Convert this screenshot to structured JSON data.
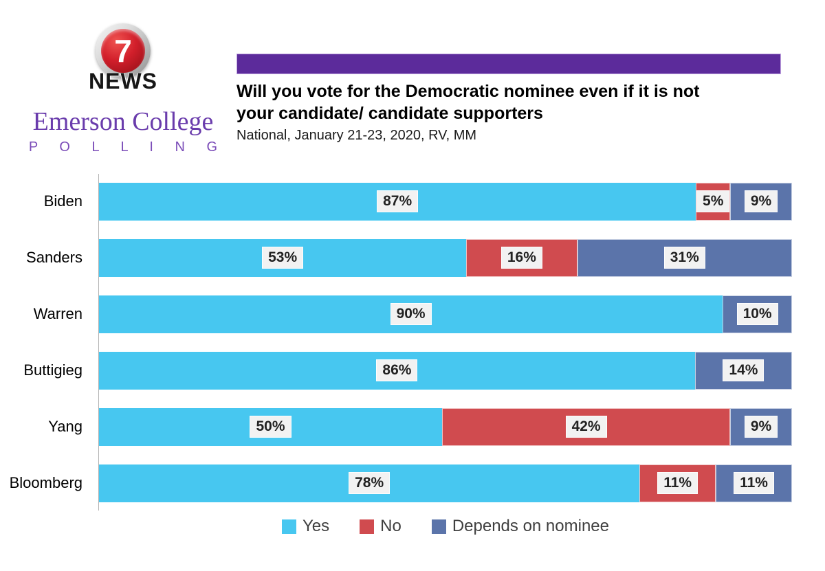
{
  "branding": {
    "logo_number": "7",
    "logo_text": "NEWS",
    "org_name": "Emerson College",
    "org_sub": "P O L L I N G",
    "org_color": "#6A3CAC"
  },
  "header": {
    "accent_bar_color": "#5C2B9B",
    "title_lines": [
      "Will you vote for the Democratic nominee even if it is not",
      "your candidate/ candidate supporters"
    ],
    "subtitle": "National, January 21-23, 2020, RV, MM"
  },
  "chart_data": {
    "type": "bar",
    "orientation": "horizontal",
    "stacked": true,
    "normalized_rows": true,
    "categories": [
      "Biden",
      "Sanders",
      "Warren",
      "Buttigieg",
      "Yang",
      "Bloomberg"
    ],
    "series": [
      {
        "name": "Yes",
        "color": "#47C7F0",
        "values": [
          87,
          53,
          90,
          86,
          50,
          78
        ]
      },
      {
        "name": "No",
        "color": "#D04B4F",
        "values": [
          5,
          16,
          0,
          0,
          42,
          11
        ]
      },
      {
        "name": "Depends on nominee",
        "color": "#5B74AA",
        "values": [
          9,
          31,
          10,
          14,
          9,
          11
        ]
      }
    ],
    "value_suffix": "%",
    "label_style": "boxed-gray",
    "label_box_color": "#F2F2F2",
    "legend_position": "bottom",
    "xlim": [
      0,
      100
    ],
    "grid": false,
    "axis_line_color": "#b3b3b3"
  }
}
